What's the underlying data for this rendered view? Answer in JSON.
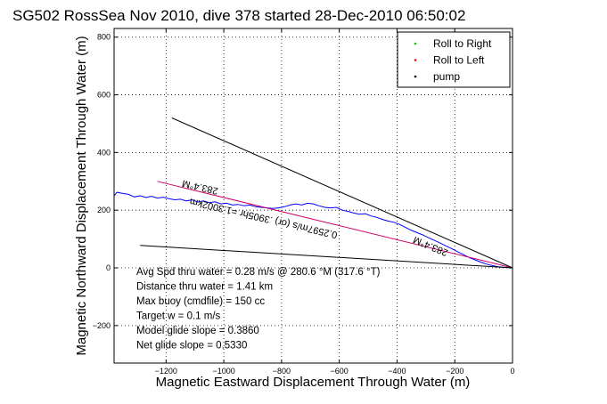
{
  "chart_data": {
    "type": "line",
    "title": "SG502 RossSea Nov 2010, dive 378 started 28-Dec-2010 06:50:02",
    "xlabel": "Magnetic Eastward Displacement Through Water (m)",
    "ylabel": "Magnetic Northward Displacement Through Water (m)",
    "xlim": [
      -1380,
      0
    ],
    "ylim": [
      -330,
      830
    ],
    "xticks": [
      -1200,
      -1000,
      -800,
      -600,
      -400,
      -200,
      0
    ],
    "yticks": [
      -200,
      0,
      200,
      400,
      600,
      800
    ],
    "grid": true,
    "legend_position": "top-right",
    "legend": [
      {
        "label": "Roll to Right",
        "color": "#00cc00"
      },
      {
        "label": "Roll to Left",
        "color": "#ff0000"
      },
      {
        "label": "pump",
        "color": "#000000"
      }
    ],
    "series": [
      {
        "name": "",
        "color": "#0000ff",
        "points": [
          [
            -1380,
            250
          ],
          [
            -1370,
            262
          ],
          [
            -1350,
            258
          ],
          [
            -1330,
            255
          ],
          [
            -1310,
            246
          ],
          [
            -1290,
            250
          ],
          [
            -1270,
            244
          ],
          [
            -1250,
            248
          ],
          [
            -1230,
            242
          ],
          [
            -1210,
            245
          ],
          [
            -1190,
            240
          ],
          [
            -1170,
            236
          ],
          [
            -1150,
            238
          ],
          [
            -1130,
            232
          ],
          [
            -1110,
            236
          ],
          [
            -1090,
            228
          ],
          [
            -1070,
            232
          ],
          [
            -1050,
            226
          ],
          [
            -1030,
            229
          ],
          [
            -1010,
            222
          ],
          [
            -990,
            224
          ],
          [
            -970,
            218
          ],
          [
            -950,
            220
          ],
          [
            -930,
            215
          ],
          [
            -910,
            218
          ],
          [
            -890,
            212
          ],
          [
            -870,
            210
          ],
          [
            -850,
            208
          ],
          [
            -830,
            206
          ],
          [
            -810,
            208
          ],
          [
            -790,
            212
          ],
          [
            -770,
            218
          ],
          [
            -750,
            222
          ],
          [
            -730,
            218
          ],
          [
            -710,
            224
          ],
          [
            -690,
            222
          ],
          [
            -670,
            215
          ],
          [
            -650,
            210
          ],
          [
            -630,
            208
          ],
          [
            -610,
            210
          ],
          [
            -590,
            200
          ],
          [
            -570,
            196
          ],
          [
            -550,
            190
          ],
          [
            -530,
            186
          ],
          [
            -510,
            188
          ],
          [
            -490,
            180
          ],
          [
            -470,
            175
          ],
          [
            -450,
            168
          ],
          [
            -430,
            162
          ],
          [
            -410,
            158
          ],
          [
            -390,
            150
          ],
          [
            -370,
            140
          ],
          [
            -350,
            130
          ],
          [
            -330,
            122
          ],
          [
            -310,
            114
          ],
          [
            -290,
            104
          ],
          [
            -270,
            95
          ],
          [
            -250,
            86
          ],
          [
            -230,
            76
          ],
          [
            -210,
            66
          ],
          [
            -190,
            56
          ],
          [
            -170,
            46
          ],
          [
            -150,
            36
          ],
          [
            -130,
            28
          ],
          [
            -110,
            20
          ],
          [
            -90,
            13
          ],
          [
            -70,
            8
          ],
          [
            -50,
            4
          ],
          [
            -30,
            2
          ],
          [
            -10,
            1
          ],
          [
            0,
            0
          ]
        ]
      },
      {
        "name": "",
        "color": "#cc0066",
        "points": [
          [
            -1230,
            300
          ],
          [
            0,
            0
          ]
        ]
      },
      {
        "name": "",
        "color": "#000000",
        "points": [
          [
            -1180,
            520
          ],
          [
            0,
            0
          ]
        ]
      },
      {
        "name": "",
        "color": "#000000",
        "points": [
          [
            -1290,
            78
          ],
          [
            0,
            0
          ]
        ]
      }
    ],
    "line_annotations": [
      {
        "text": "283.4°M",
        "at": [
          -1080,
          290
        ],
        "angle_deg": 13
      },
      {
        "text": "283.4°M",
        "at": [
          -280,
          85
        ],
        "angle_deg": 23
      },
      {
        "text": "0.2597m/s (or) .3905hr =1.3002km",
        "at": [
          -860,
          182
        ],
        "angle_deg": 13
      }
    ],
    "annotations": [
      "Avg Spd thru water =  0.28 m/s @ 280.6    °M (317.6 °T)",
      "Distance thru water =  1.41 km",
      "Max buoy (cmdfile) = 150 cc",
      "Target w = 0.1 m/s",
      "Model glide slope = 0.3860",
      "Net glide slope = 0.5330"
    ]
  }
}
